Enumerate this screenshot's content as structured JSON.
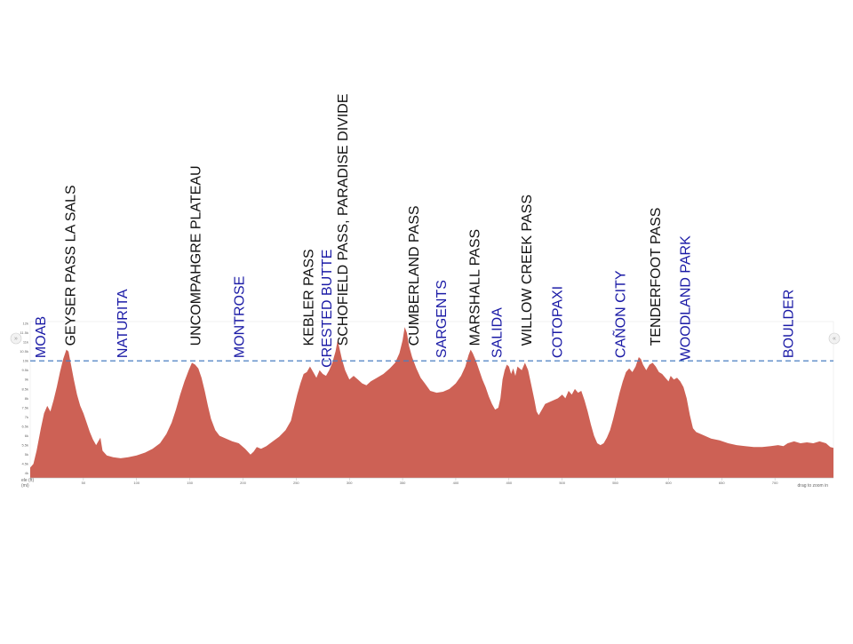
{
  "chart_data": {
    "type": "area",
    "title": "",
    "xlabel": "",
    "ylabel": "",
    "x_unit_label": "(mi)",
    "y_unit_label": "ele (ft)",
    "drag_hint": "drag to zoom in",
    "xlim": [
      0,
      755
    ],
    "ylim": [
      3750,
      12100
    ],
    "reference_line": 10000,
    "fill_color": "#cd6155",
    "reference_color": "#4a7fc1",
    "pass_color": "#111111",
    "town_color": "#1a1aa6",
    "x_ticks": [
      {
        "value": 50,
        "label": "50"
      },
      {
        "value": 100,
        "label": "100"
      },
      {
        "value": 150,
        "label": "150"
      },
      {
        "value": 200,
        "label": "200"
      },
      {
        "value": 250,
        "label": "250"
      },
      {
        "value": 300,
        "label": "300"
      },
      {
        "value": 350,
        "label": "350"
      },
      {
        "value": 400,
        "label": "400"
      },
      {
        "value": 450,
        "label": "450"
      },
      {
        "value": 500,
        "label": "500"
      },
      {
        "value": 550,
        "label": "550"
      },
      {
        "value": 600,
        "label": "600"
      },
      {
        "value": 650,
        "label": "650"
      },
      {
        "value": 700,
        "label": "700"
      }
    ],
    "y_ticks": [
      {
        "value": 4000,
        "label": "4k"
      },
      {
        "value": 4500,
        "label": "4.5k"
      },
      {
        "value": 5000,
        "label": "5k"
      },
      {
        "value": 5500,
        "label": "5.5k"
      },
      {
        "value": 6000,
        "label": "6k"
      },
      {
        "value": 6500,
        "label": "6.5k"
      },
      {
        "value": 7000,
        "label": "7k"
      },
      {
        "value": 7500,
        "label": "7.5k"
      },
      {
        "value": 8000,
        "label": "8k"
      },
      {
        "value": 8500,
        "label": "8.5k"
      },
      {
        "value": 9000,
        "label": "9k"
      },
      {
        "value": 9500,
        "label": "9.5k"
      },
      {
        "value": 10000,
        "label": "10k"
      },
      {
        "value": 10500,
        "label": "10.5k"
      },
      {
        "value": 11000,
        "label": "11k"
      },
      {
        "value": 11500,
        "label": "11.5k"
      },
      {
        "value": 12000,
        "label": "12k"
      }
    ],
    "profile": [
      [
        0,
        4300
      ],
      [
        3,
        4500
      ],
      [
        6,
        5200
      ],
      [
        10,
        6400
      ],
      [
        13,
        7200
      ],
      [
        16,
        7600
      ],
      [
        19,
        7300
      ],
      [
        22,
        7900
      ],
      [
        25,
        8600
      ],
      [
        28,
        9400
      ],
      [
        31,
        10100
      ],
      [
        34,
        10600
      ],
      [
        36,
        10500
      ],
      [
        38,
        9900
      ],
      [
        41,
        9000
      ],
      [
        44,
        8200
      ],
      [
        47,
        7600
      ],
      [
        50,
        7200
      ],
      [
        53,
        6700
      ],
      [
        56,
        6200
      ],
      [
        59,
        5800
      ],
      [
        62,
        5500
      ],
      [
        64,
        5700
      ],
      [
        66,
        5900
      ],
      [
        68,
        5200
      ],
      [
        72,
        4950
      ],
      [
        78,
        4850
      ],
      [
        85,
        4800
      ],
      [
        92,
        4850
      ],
      [
        100,
        4950
      ],
      [
        108,
        5100
      ],
      [
        115,
        5300
      ],
      [
        122,
        5600
      ],
      [
        128,
        6100
      ],
      [
        133,
        6700
      ],
      [
        137,
        7400
      ],
      [
        141,
        8200
      ],
      [
        145,
        8900
      ],
      [
        149,
        9500
      ],
      [
        152,
        9900
      ],
      [
        155,
        9800
      ],
      [
        158,
        9600
      ],
      [
        161,
        9100
      ],
      [
        164,
        8400
      ],
      [
        167,
        7600
      ],
      [
        170,
        6900
      ],
      [
        174,
        6300
      ],
      [
        178,
        6000
      ],
      [
        184,
        5850
      ],
      [
        190,
        5700
      ],
      [
        196,
        5600
      ],
      [
        202,
        5300
      ],
      [
        207,
        5000
      ],
      [
        210,
        5150
      ],
      [
        213,
        5400
      ],
      [
        217,
        5300
      ],
      [
        222,
        5450
      ],
      [
        228,
        5700
      ],
      [
        234,
        5950
      ],
      [
        240,
        6300
      ],
      [
        245,
        6800
      ],
      [
        248,
        7500
      ],
      [
        251,
        8200
      ],
      [
        254,
        8800
      ],
      [
        257,
        9300
      ],
      [
        260,
        9400
      ],
      [
        263,
        9700
      ],
      [
        266,
        9400
      ],
      [
        269,
        9100
      ],
      [
        272,
        9500
      ],
      [
        275,
        9300
      ],
      [
        278,
        9200
      ],
      [
        281,
        9500
      ],
      [
        284,
        9900
      ],
      [
        287,
        10500
      ],
      [
        289,
        11100
      ],
      [
        291,
        10600
      ],
      [
        293,
        10100
      ],
      [
        296,
        9500
      ],
      [
        300,
        9000
      ],
      [
        304,
        9200
      ],
      [
        308,
        9000
      ],
      [
        312,
        8800
      ],
      [
        316,
        8700
      ],
      [
        320,
        8900
      ],
      [
        326,
        9100
      ],
      [
        332,
        9300
      ],
      [
        338,
        9600
      ],
      [
        343,
        9900
      ],
      [
        347,
        10400
      ],
      [
        350,
        11100
      ],
      [
        352,
        11800
      ],
      [
        354,
        11500
      ],
      [
        356,
        10800
      ],
      [
        359,
        10200
      ],
      [
        363,
        9600
      ],
      [
        367,
        9100
      ],
      [
        371,
        8800
      ],
      [
        376,
        8400
      ],
      [
        382,
        8300
      ],
      [
        388,
        8350
      ],
      [
        394,
        8500
      ],
      [
        400,
        8800
      ],
      [
        405,
        9200
      ],
      [
        409,
        9700
      ],
      [
        412,
        10300
      ],
      [
        414,
        10600
      ],
      [
        416,
        10400
      ],
      [
        419,
        10000
      ],
      [
        422,
        9500
      ],
      [
        425,
        9000
      ],
      [
        428,
        8600
      ],
      [
        431,
        8100
      ],
      [
        434,
        7700
      ],
      [
        437,
        7400
      ],
      [
        440,
        7500
      ],
      [
        442,
        8000
      ],
      [
        444,
        9000
      ],
      [
        446,
        9500
      ],
      [
        448,
        9800
      ],
      [
        450,
        9700
      ],
      [
        452,
        9300
      ],
      [
        454,
        9600
      ],
      [
        456,
        9200
      ],
      [
        458,
        9700
      ],
      [
        460,
        9600
      ],
      [
        462,
        9500
      ],
      [
        465,
        9900
      ],
      [
        468,
        9500
      ],
      [
        471,
        8700
      ],
      [
        474,
        7900
      ],
      [
        476,
        7300
      ],
      [
        478,
        7100
      ],
      [
        481,
        7400
      ],
      [
        484,
        7700
      ],
      [
        488,
        7800
      ],
      [
        492,
        7900
      ],
      [
        496,
        8000
      ],
      [
        500,
        8200
      ],
      [
        503,
        8000
      ],
      [
        506,
        8400
      ],
      [
        509,
        8200
      ],
      [
        512,
        8500
      ],
      [
        515,
        8300
      ],
      [
        518,
        8400
      ],
      [
        521,
        7900
      ],
      [
        524,
        7300
      ],
      [
        527,
        6600
      ],
      [
        530,
        6000
      ],
      [
        533,
        5600
      ],
      [
        536,
        5500
      ],
      [
        539,
        5600
      ],
      [
        542,
        5900
      ],
      [
        545,
        6300
      ],
      [
        548,
        6900
      ],
      [
        551,
        7600
      ],
      [
        554,
        8300
      ],
      [
        557,
        8900
      ],
      [
        560,
        9400
      ],
      [
        563,
        9600
      ],
      [
        566,
        9400
      ],
      [
        569,
        9700
      ],
      [
        572,
        10200
      ],
      [
        574,
        10100
      ],
      [
        576,
        9800
      ],
      [
        579,
        9500
      ],
      [
        582,
        9800
      ],
      [
        585,
        9900
      ],
      [
        588,
        9700
      ],
      [
        591,
        9400
      ],
      [
        594,
        9300
      ],
      [
        597,
        9100
      ],
      [
        600,
        8900
      ],
      [
        602,
        9200
      ],
      [
        605,
        9000
      ],
      [
        608,
        9100
      ],
      [
        611,
        8900
      ],
      [
        614,
        8600
      ],
      [
        617,
        8000
      ],
      [
        620,
        7100
      ],
      [
        623,
        6400
      ],
      [
        626,
        6200
      ],
      [
        632,
        6050
      ],
      [
        640,
        5850
      ],
      [
        648,
        5750
      ],
      [
        656,
        5600
      ],
      [
        664,
        5500
      ],
      [
        672,
        5450
      ],
      [
        680,
        5400
      ],
      [
        688,
        5400
      ],
      [
        696,
        5450
      ],
      [
        703,
        5500
      ],
      [
        708,
        5450
      ],
      [
        712,
        5600
      ],
      [
        718,
        5700
      ],
      [
        724,
        5600
      ],
      [
        730,
        5650
      ],
      [
        736,
        5600
      ],
      [
        742,
        5700
      ],
      [
        748,
        5600
      ],
      [
        752,
        5400
      ],
      [
        755,
        5350
      ]
    ],
    "labels": [
      {
        "text": "MOAB",
        "kind": "town",
        "x": 9,
        "bottom": 10150
      },
      {
        "text": "GEYSER PASS LA SALS",
        "kind": "pass",
        "x": 37,
        "bottom": 10800
      },
      {
        "text": "NATURITA",
        "kind": "town",
        "x": 86,
        "bottom": 10150
      },
      {
        "text": "UNCOMPAHGRE PLATEAU",
        "kind": "pass",
        "x": 155,
        "bottom": 10800
      },
      {
        "text": "MONTROSE",
        "kind": "town",
        "x": 196,
        "bottom": 10150
      },
      {
        "text": "KEBLER PASS",
        "kind": "pass",
        "x": 261,
        "bottom": 10800
      },
      {
        "text": "CRESTED BUTTE",
        "kind": "town",
        "x": 278,
        "bottom": 9640
      },
      {
        "text": "SCHOFIELD PASS, PARADISE DIVIDE",
        "kind": "pass",
        "x": 293,
        "bottom": 10800
      },
      {
        "text": "CUMBERLAND PASS",
        "kind": "pass",
        "x": 360,
        "bottom": 10800
      },
      {
        "text": "SARGENTS",
        "kind": "town",
        "x": 386,
        "bottom": 10150
      },
      {
        "text": "MARSHALL PASS",
        "kind": "pass",
        "x": 417,
        "bottom": 10800
      },
      {
        "text": "SALIDA",
        "kind": "town",
        "x": 438,
        "bottom": 10150
      },
      {
        "text": "WILLOW CREEK PASS",
        "kind": "pass",
        "x": 466,
        "bottom": 10800
      },
      {
        "text": "COTOPAXI",
        "kind": "town",
        "x": 495,
        "bottom": 10150
      },
      {
        "text": "CAÑON CITY",
        "kind": "town",
        "x": 554,
        "bottom": 10150
      },
      {
        "text": "TENDERFOOT PASS",
        "kind": "pass",
        "x": 587,
        "bottom": 10800
      },
      {
        "text": "WOODLAND PARK",
        "kind": "town",
        "x": 615,
        "bottom": 10000
      },
      {
        "text": "BOULDER",
        "kind": "town",
        "x": 712,
        "bottom": 10150
      }
    ]
  }
}
